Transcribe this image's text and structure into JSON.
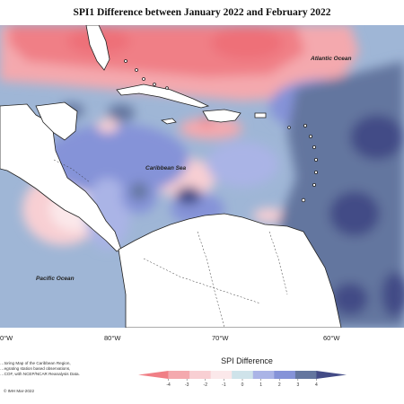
{
  "title": "SPI1 Difference between January 2022 and February 2022",
  "labels": {
    "atlantic": "Atlantic Ocean",
    "caribbean": "Caribbean Sea",
    "pacific": "Pacific Ocean"
  },
  "longitudes": [
    "0°W",
    "80°W",
    "70°W",
    "60°W"
  ],
  "legend": {
    "title": "SPI Difference",
    "ticks": [
      "-4",
      "-3",
      "-2",
      "-1",
      "0",
      "1",
      "2",
      "3",
      "4"
    ],
    "colors": [
      "#f07f86",
      "#f4a9ae",
      "#f8cfd3",
      "#fbe8ea",
      "#cfe3ea",
      "#aab4e6",
      "#8593d8",
      "#64769f",
      "#434b86"
    ]
  },
  "caption": {
    "line1": "…toring Map of the Caribbean Region,",
    "line2": "…egrating station based observations,",
    "line3": "…COF, with NCEP/NCAR Reanalysis Data."
  },
  "copyright": "© IMH Mar-2022"
}
